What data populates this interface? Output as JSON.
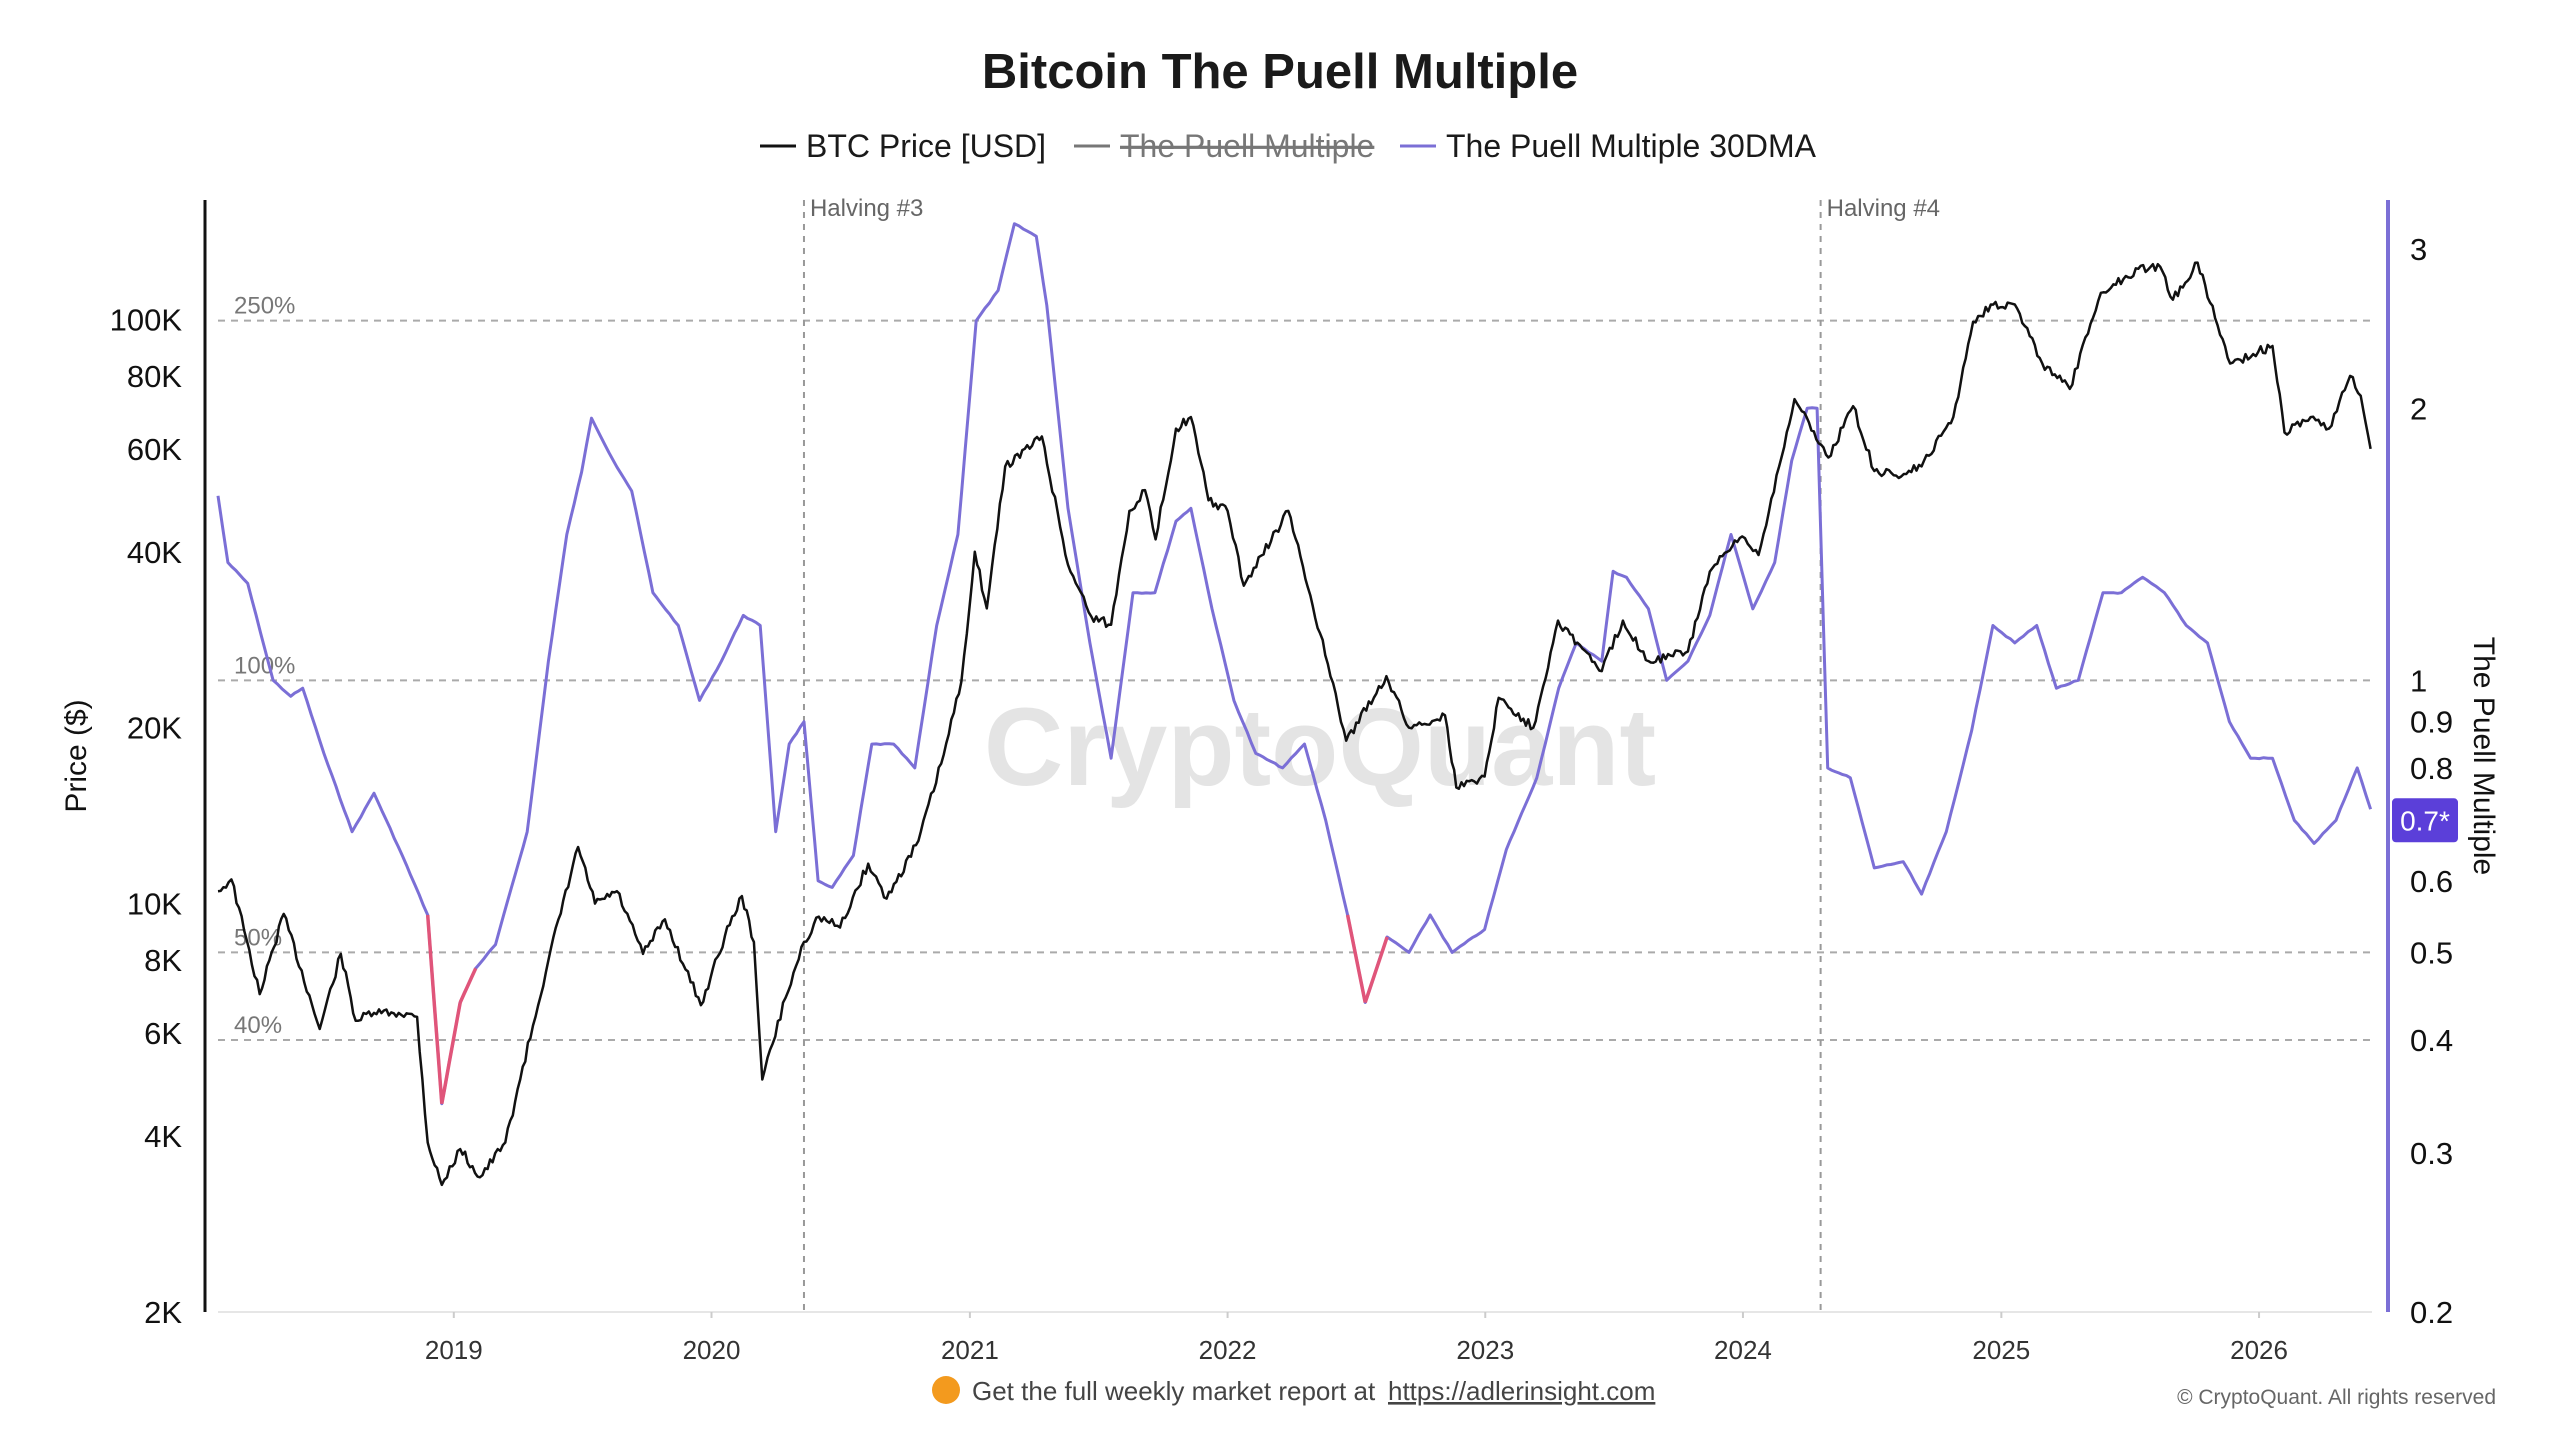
{
  "chart_data": {
    "type": "line",
    "title": "Bitcoin The Puell Multiple",
    "legend": [
      {
        "label": "BTC Price [USD]",
        "color": "#111111",
        "enabled": true
      },
      {
        "label": "The Puell Multiple",
        "color": "#777777",
        "enabled": false
      },
      {
        "label": "The Puell Multiple 30DMA",
        "color": "#7b6fd6",
        "enabled": true
      }
    ],
    "legend_placement": "top-center",
    "x_axis": {
      "type": "date",
      "range": [
        "2018-02-01",
        "2026-06-10"
      ],
      "ticks": [
        "2019",
        "2020",
        "2021",
        "2022",
        "2023",
        "2024",
        "2025",
        "2026"
      ]
    },
    "y_left": {
      "label": "Price ($)",
      "scale": "log",
      "range": [
        2000,
        160000
      ],
      "ticks": [
        {
          "v": 2000,
          "t": "2K"
        },
        {
          "v": 4000,
          "t": "4K"
        },
        {
          "v": 6000,
          "t": "6K"
        },
        {
          "v": 8000,
          "t": "8K"
        },
        {
          "v": 10000,
          "t": "10K"
        },
        {
          "v": 20000,
          "t": "20K"
        },
        {
          "v": 40000,
          "t": "40K"
        },
        {
          "v": 60000,
          "t": "60K"
        },
        {
          "v": 80000,
          "t": "80K"
        },
        {
          "v": 100000,
          "t": "100K"
        }
      ]
    },
    "y_right": {
      "label": "The Puell Multiple",
      "scale": "log",
      "range": [
        0.2,
        3.4
      ],
      "ticks": [
        {
          "v": 0.2,
          "t": "0.2"
        },
        {
          "v": 0.3,
          "t": "0.3"
        },
        {
          "v": 0.4,
          "t": "0.4"
        },
        {
          "v": 0.5,
          "t": "0.5"
        },
        {
          "v": 0.6,
          "t": "0.6"
        },
        {
          "v": 0.7,
          "t": "0.7"
        },
        {
          "v": 0.8,
          "t": "0.8"
        },
        {
          "v": 0.9,
          "t": "0.9"
        },
        {
          "v": 1,
          "t": "1"
        },
        {
          "v": 2,
          "t": "2"
        },
        {
          "v": 3,
          "t": "3"
        }
      ]
    },
    "reference_lines": [
      {
        "value": 2.5,
        "label": "250%"
      },
      {
        "value": 1.0,
        "label": "100%"
      },
      {
        "value": 0.5,
        "label": "50%"
      },
      {
        "value": 0.4,
        "label": "40%"
      }
    ],
    "events": [
      {
        "date": "2020-05-11",
        "label": "Halving #3"
      },
      {
        "date": "2024-04-20",
        "label": "Halving #4"
      }
    ],
    "highlight": {
      "color": "#e0557a",
      "below": 0.5
    },
    "current_value_badge": {
      "value": 0.7,
      "text": "0.7*",
      "color": "#5b3fd9"
    },
    "series": [
      {
        "name": "BTC Price [USD]",
        "axis": "left",
        "color": "#111111",
        "points": [
          [
            "2018-02-01",
            10500
          ],
          [
            "2018-02-20",
            11000
          ],
          [
            "2018-03-10",
            9000
          ],
          [
            "2018-04-01",
            7000
          ],
          [
            "2018-05-05",
            9600
          ],
          [
            "2018-06-25",
            6100
          ],
          [
            "2018-07-25",
            8200
          ],
          [
            "2018-08-15",
            6300
          ],
          [
            "2018-09-10",
            6500
          ],
          [
            "2018-10-15",
            6500
          ],
          [
            "2018-11-10",
            6400
          ],
          [
            "2018-11-25",
            3900
          ],
          [
            "2018-12-15",
            3300
          ],
          [
            "2019-01-10",
            3800
          ],
          [
            "2019-02-07",
            3400
          ],
          [
            "2019-03-15",
            3900
          ],
          [
            "2019-04-05",
            5000
          ],
          [
            "2019-05-15",
            8000
          ],
          [
            "2019-06-26",
            12500
          ],
          [
            "2019-07-20",
            10000
          ],
          [
            "2019-08-20",
            10500
          ],
          [
            "2019-09-26",
            8200
          ],
          [
            "2019-10-27",
            9400
          ],
          [
            "2019-12-17",
            6700
          ],
          [
            "2020-01-20",
            8800
          ],
          [
            "2020-02-13",
            10300
          ],
          [
            "2020-03-01",
            8600
          ],
          [
            "2020-03-13",
            5000
          ],
          [
            "2020-04-15",
            6900
          ],
          [
            "2020-05-11",
            8600
          ],
          [
            "2020-06-01",
            9500
          ],
          [
            "2020-07-01",
            9100
          ],
          [
            "2020-08-10",
            11700
          ],
          [
            "2020-09-05",
            10200
          ],
          [
            "2020-10-20",
            12800
          ],
          [
            "2020-11-25",
            18000
          ],
          [
            "2020-12-20",
            24000
          ],
          [
            "2021-01-08",
            40000
          ],
          [
            "2021-01-25",
            32000
          ],
          [
            "2021-02-20",
            56000
          ],
          [
            "2021-04-13",
            63000
          ],
          [
            "2021-05-20",
            38000
          ],
          [
            "2021-06-22",
            31000
          ],
          [
            "2021-07-20",
            30000
          ],
          [
            "2021-08-15",
            47000
          ],
          [
            "2021-09-06",
            51000
          ],
          [
            "2021-09-21",
            42000
          ],
          [
            "2021-10-20",
            65000
          ],
          [
            "2021-11-10",
            68000
          ],
          [
            "2021-12-05",
            49000
          ],
          [
            "2022-01-01",
            47000
          ],
          [
            "2022-01-24",
            35000
          ],
          [
            "2022-03-28",
            47000
          ],
          [
            "2022-05-12",
            29000
          ],
          [
            "2022-06-18",
            19000
          ],
          [
            "2022-08-14",
            24500
          ],
          [
            "2022-09-15",
            20000
          ],
          [
            "2022-11-05",
            21000
          ],
          [
            "2022-11-21",
            15800
          ],
          [
            "2022-12-31",
            16500
          ],
          [
            "2023-01-20",
            22500
          ],
          [
            "2023-03-10",
            20000
          ],
          [
            "2023-04-14",
            30500
          ],
          [
            "2023-06-15",
            25000
          ],
          [
            "2023-07-15",
            30500
          ],
          [
            "2023-08-20",
            26000
          ],
          [
            "2023-10-15",
            27000
          ],
          [
            "2023-11-15",
            37000
          ],
          [
            "2023-12-31",
            42500
          ],
          [
            "2024-01-23",
            39500
          ],
          [
            "2024-03-14",
            73000
          ],
          [
            "2024-05-01",
            58000
          ],
          [
            "2024-06-05",
            71000
          ],
          [
            "2024-07-05",
            55000
          ],
          [
            "2024-08-05",
            54000
          ],
          [
            "2024-09-10",
            56000
          ],
          [
            "2024-10-25",
            68000
          ],
          [
            "2024-11-22",
            99000
          ],
          [
            "2024-12-17",
            106000
          ],
          [
            "2025-01-20",
            106000
          ],
          [
            "2025-02-28",
            84000
          ],
          [
            "2025-04-08",
            76000
          ],
          [
            "2025-05-22",
            111000
          ],
          [
            "2025-07-14",
            122000
          ],
          [
            "2025-08-14",
            123000
          ],
          [
            "2025-09-01",
            108000
          ],
          [
            "2025-10-06",
            125000
          ],
          [
            "2025-11-21",
            84000
          ],
          [
            "2025-12-31",
            88000
          ],
          [
            "2026-01-20",
            90000
          ],
          [
            "2026-02-06",
            64000
          ],
          [
            "2026-03-15",
            68000
          ],
          [
            "2026-04-10",
            65000
          ],
          [
            "2026-05-10",
            80000
          ],
          [
            "2026-05-25",
            74000
          ],
          [
            "2026-06-08",
            60000
          ]
        ]
      },
      {
        "name": "The Puell Multiple 30DMA",
        "axis": "right",
        "color": "#7b6fd6",
        "points": [
          [
            "2018-02-01",
            1.6
          ],
          [
            "2018-02-15",
            1.35
          ],
          [
            "2018-03-15",
            1.28
          ],
          [
            "2018-04-20",
            1.0
          ],
          [
            "2018-05-15",
            0.96
          ],
          [
            "2018-06-01",
            0.98
          ],
          [
            "2018-07-01",
            0.83
          ],
          [
            "2018-08-10",
            0.68
          ],
          [
            "2018-09-10",
            0.75
          ],
          [
            "2018-10-20",
            0.64
          ],
          [
            "2018-11-25",
            0.55
          ],
          [
            "2018-12-15",
            0.34
          ],
          [
            "2019-01-10",
            0.44
          ],
          [
            "2019-02-01",
            0.48
          ],
          [
            "2019-03-01",
            0.51
          ],
          [
            "2019-04-15",
            0.68
          ],
          [
            "2019-05-15",
            1.05
          ],
          [
            "2019-06-10",
            1.45
          ],
          [
            "2019-07-01",
            1.7
          ],
          [
            "2019-07-15",
            1.95
          ],
          [
            "2019-08-15",
            1.75
          ],
          [
            "2019-09-10",
            1.62
          ],
          [
            "2019-10-10",
            1.25
          ],
          [
            "2019-11-15",
            1.15
          ],
          [
            "2019-12-15",
            0.95
          ],
          [
            "2020-01-15",
            1.05
          ],
          [
            "2020-02-15",
            1.18
          ],
          [
            "2020-03-10",
            1.15
          ],
          [
            "2020-04-01",
            0.68
          ],
          [
            "2020-04-20",
            0.85
          ],
          [
            "2020-05-11",
            0.9
          ],
          [
            "2020-05-31",
            0.6
          ],
          [
            "2020-06-20",
            0.59
          ],
          [
            "2020-07-20",
            0.64
          ],
          [
            "2020-08-15",
            0.85
          ],
          [
            "2020-09-15",
            0.85
          ],
          [
            "2020-10-15",
            0.8
          ],
          [
            "2020-11-15",
            1.15
          ],
          [
            "2020-12-15",
            1.45
          ],
          [
            "2021-01-10",
            2.5
          ],
          [
            "2021-02-10",
            2.7
          ],
          [
            "2021-03-05",
            3.2
          ],
          [
            "2021-04-05",
            3.1
          ],
          [
            "2021-04-20",
            2.6
          ],
          [
            "2021-05-20",
            1.55
          ],
          [
            "2021-06-20",
            1.1
          ],
          [
            "2021-07-20",
            0.82
          ],
          [
            "2021-08-20",
            1.25
          ],
          [
            "2021-09-20",
            1.25
          ],
          [
            "2021-10-20",
            1.5
          ],
          [
            "2021-11-10",
            1.55
          ],
          [
            "2021-12-10",
            1.2
          ],
          [
            "2022-01-10",
            0.95
          ],
          [
            "2022-02-10",
            0.83
          ],
          [
            "2022-03-20",
            0.8
          ],
          [
            "2022-04-20",
            0.85
          ],
          [
            "2022-05-20",
            0.7
          ],
          [
            "2022-06-20",
            0.55
          ],
          [
            "2022-07-15",
            0.44
          ],
          [
            "2022-08-15",
            0.52
          ],
          [
            "2022-09-15",
            0.5
          ],
          [
            "2022-10-15",
            0.55
          ],
          [
            "2022-11-15",
            0.5
          ],
          [
            "2022-12-31",
            0.53
          ],
          [
            "2023-01-31",
            0.65
          ],
          [
            "2023-03-15",
            0.78
          ],
          [
            "2023-04-15",
            0.98
          ],
          [
            "2023-05-10",
            1.1
          ],
          [
            "2023-06-15",
            1.05
          ],
          [
            "2023-07-01",
            1.32
          ],
          [
            "2023-07-20",
            1.3
          ],
          [
            "2023-08-20",
            1.2
          ],
          [
            "2023-09-15",
            1.0
          ],
          [
            "2023-10-15",
            1.05
          ],
          [
            "2023-11-15",
            1.18
          ],
          [
            "2023-12-15",
            1.45
          ],
          [
            "2024-01-15",
            1.2
          ],
          [
            "2024-02-15",
            1.35
          ],
          [
            "2024-03-10",
            1.75
          ],
          [
            "2024-04-01",
            2.0
          ],
          [
            "2024-04-15",
            2.0
          ],
          [
            "2024-04-30",
            0.8
          ],
          [
            "2024-06-01",
            0.78
          ],
          [
            "2024-07-05",
            0.62
          ],
          [
            "2024-08-15",
            0.63
          ],
          [
            "2024-09-10",
            0.58
          ],
          [
            "2024-10-15",
            0.68
          ],
          [
            "2024-11-20",
            0.88
          ],
          [
            "2024-12-20",
            1.15
          ],
          [
            "2025-01-20",
            1.1
          ],
          [
            "2025-02-20",
            1.15
          ],
          [
            "2025-03-20",
            0.98
          ],
          [
            "2025-04-20",
            1.0
          ],
          [
            "2025-05-25",
            1.25
          ],
          [
            "2025-06-20",
            1.25
          ],
          [
            "2025-07-20",
            1.3
          ],
          [
            "2025-08-20",
            1.25
          ],
          [
            "2025-09-20",
            1.15
          ],
          [
            "2025-10-20",
            1.1
          ],
          [
            "2025-11-20",
            0.9
          ],
          [
            "2025-12-20",
            0.82
          ],
          [
            "2026-01-20",
            0.82
          ],
          [
            "2026-02-20",
            0.7
          ],
          [
            "2026-03-20",
            0.66
          ],
          [
            "2026-04-20",
            0.7
          ],
          [
            "2026-05-20",
            0.8
          ],
          [
            "2026-06-08",
            0.72
          ]
        ]
      }
    ]
  },
  "watermark": "CryptoQuant",
  "footer": {
    "emoji": "🟠",
    "text": "Get the full weekly market report at",
    "link_text": "https://adlerinsight.com",
    "copyright": "© CryptoQuant. All rights reserved"
  }
}
